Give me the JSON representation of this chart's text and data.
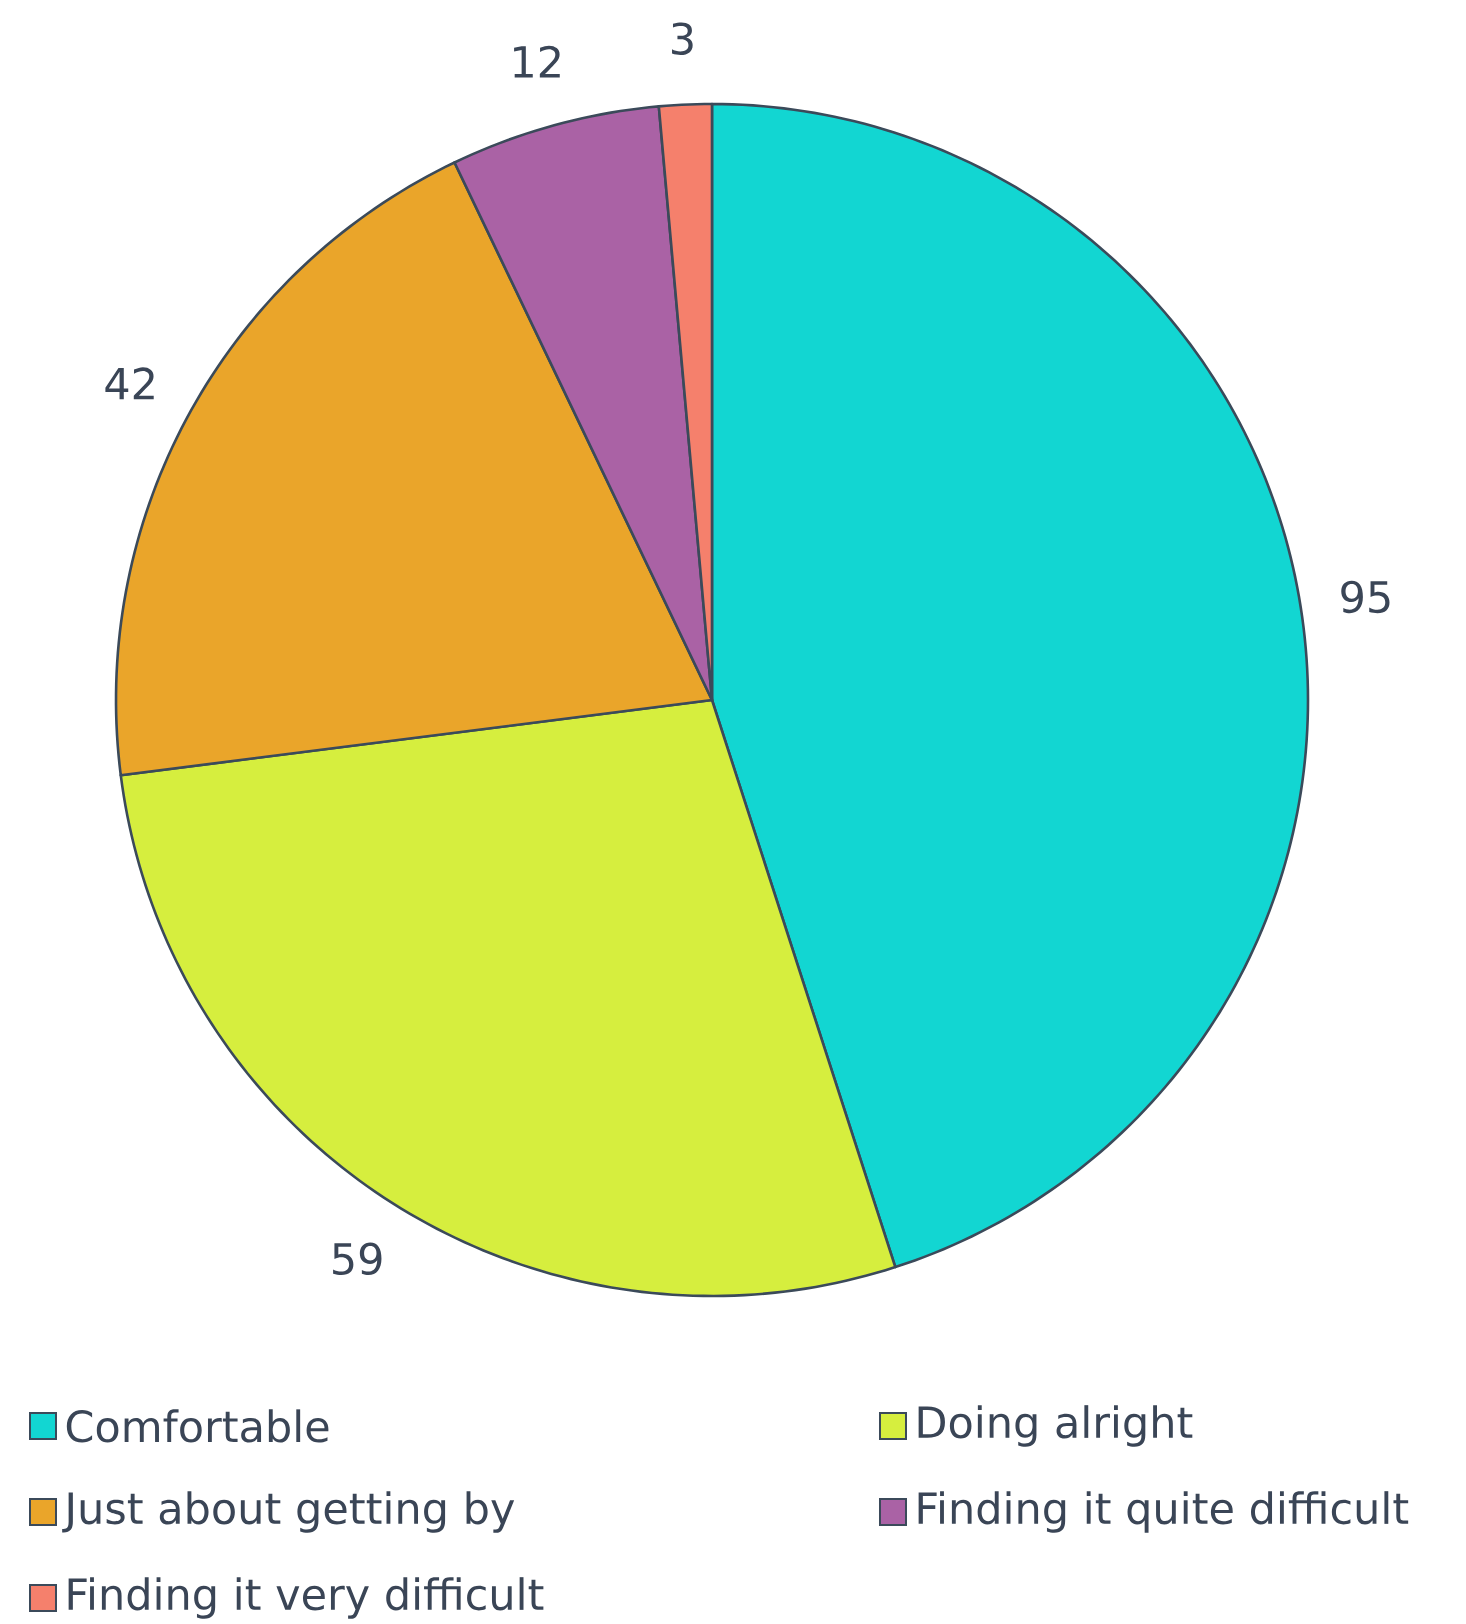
{
  "chart_data": {
    "type": "pie",
    "categories": [
      "Comfortable",
      "Doing alright",
      "Just about getting by",
      "Finding it quite difficult",
      "Finding it very difficult"
    ],
    "values": [
      95,
      59,
      42,
      12,
      3
    ],
    "colors": [
      "#12d6d2",
      "#d6ee3e",
      "#eaa52a",
      "#aa62a5",
      "#f5806c"
    ],
    "data_labels": true,
    "legend": "bottom"
  }
}
